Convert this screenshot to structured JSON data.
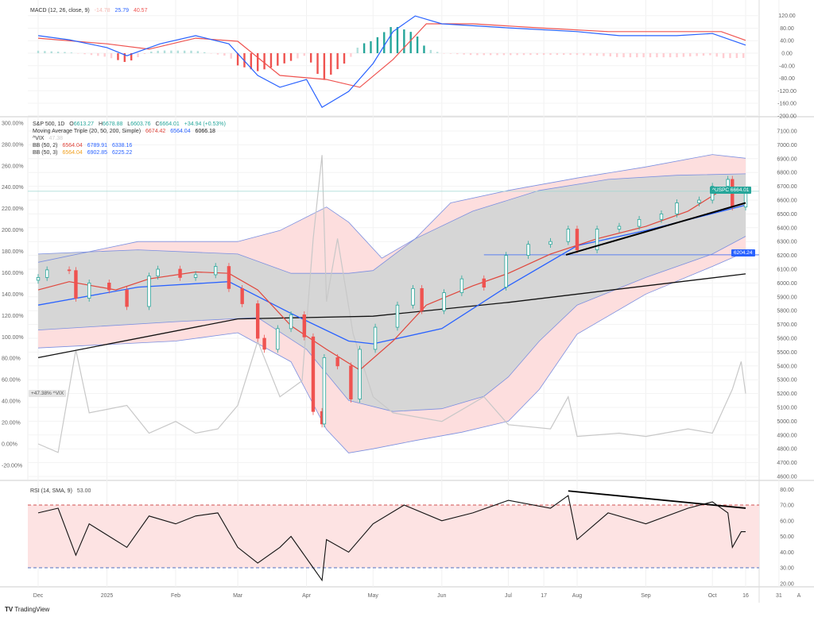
{
  "footer": {
    "brand": "TradingView",
    "logo": "TV"
  },
  "time_axis": [
    {
      "label": "Dec",
      "date": "2024-12-01"
    },
    {
      "label": "2025",
      "date": "2025-01-01"
    },
    {
      "label": "Feb",
      "date": "2025-02-01"
    },
    {
      "label": "Mar",
      "date": "2025-03-01"
    },
    {
      "label": "Apr",
      "date": "2025-04-01"
    },
    {
      "label": "May",
      "date": "2025-05-01"
    },
    {
      "label": "Jun",
      "date": "2025-06-01"
    },
    {
      "label": "Jul",
      "date": "2025-07-01"
    },
    {
      "label": "17",
      "date": "2025-07-17"
    },
    {
      "label": "Aug",
      "date": "2025-08-01"
    },
    {
      "label": "Sep",
      "date": "2025-09-01"
    },
    {
      "label": "Oct",
      "date": "2025-10-01"
    },
    {
      "label": "16",
      "date": "2025-10-16"
    },
    {
      "label": "31",
      "date": "2025-10-31"
    }
  ],
  "time_axis_auto": "A",
  "colors": {
    "up": "#26a69a",
    "down": "#ef5350",
    "ma20": "#e0463c",
    "ma50": "#2962ff",
    "ma200": "#111111",
    "bb2": "#d6d6d6",
    "bb3": "#fddede",
    "vix": "#c8c8c8",
    "macd": "#2962ff",
    "signal": "#ef5350"
  },
  "chart_data": [
    {
      "type": "line",
      "pane": "macd",
      "title": "MACD (12, 26, close, 9)",
      "legend_values": [
        "-14.78",
        "25.79",
        "40.57"
      ],
      "yticks": [
        "120.00",
        "80.00",
        "40.00",
        "0.00",
        "-40.00",
        "-80.00",
        "-120.00",
        "-160.00",
        "-200.00"
      ],
      "ylim": [
        -200,
        120
      ],
      "series": [
        {
          "name": "MACD",
          "points": [
            [
              "2024-12-01",
              56
            ],
            [
              "2024-12-15",
              43
            ],
            [
              "2025-01-01",
              18
            ],
            [
              "2025-01-10",
              -8
            ],
            [
              "2025-01-25",
              30
            ],
            [
              "2025-02-10",
              56
            ],
            [
              "2025-02-25",
              30
            ],
            [
              "2025-03-10",
              -71
            ],
            [
              "2025-03-20",
              -109
            ],
            [
              "2025-04-01",
              -84
            ],
            [
              "2025-04-08",
              -173
            ],
            [
              "2025-04-20",
              -122
            ],
            [
              "2025-05-01",
              -33
            ],
            [
              "2025-05-10",
              69
            ],
            [
              "2025-05-20",
              119
            ],
            [
              "2025-06-01",
              94
            ],
            [
              "2025-07-01",
              81
            ],
            [
              "2025-08-01",
              69
            ],
            [
              "2025-08-20",
              56
            ],
            [
              "2025-09-15",
              56
            ],
            [
              "2025-10-01",
              63
            ],
            [
              "2025-10-16",
              26
            ]
          ]
        },
        {
          "name": "Signal",
          "points": [
            [
              "2024-12-01",
              48
            ],
            [
              "2025-01-01",
              30
            ],
            [
              "2025-01-20",
              13
            ],
            [
              "2025-02-10",
              48
            ],
            [
              "2025-03-01",
              38
            ],
            [
              "2025-03-20",
              -71
            ],
            [
              "2025-04-10",
              -84
            ],
            [
              "2025-04-25",
              -109
            ],
            [
              "2025-05-10",
              -20
            ],
            [
              "2025-05-25",
              94
            ],
            [
              "2025-06-15",
              94
            ],
            [
              "2025-07-15",
              81
            ],
            [
              "2025-08-15",
              69
            ],
            [
              "2025-09-15",
              69
            ],
            [
              "2025-10-05",
              69
            ],
            [
              "2025-10-16",
              41
            ]
          ]
        }
      ]
    },
    {
      "type": "candlestick",
      "pane": "price",
      "title": "S&P 500, 1D",
      "ohlc": {
        "O": "6613.27",
        "H": "6678.88",
        "L": "6603.76",
        "C": "6664.01",
        "change": "+34.94 (+0.53%)"
      },
      "ma_title": "Moving Average Triple (20, 50, 200, Simple)",
      "ma_values": [
        "6674.42",
        "6564.04",
        "6066.18"
      ],
      "vix_title": "^VIX",
      "vix_value": "47.38",
      "bb2_title": "BB (50, 2)",
      "bb2_values": [
        "6564.04",
        "6789.91",
        "6338.16"
      ],
      "bb3_title": "BB (50, 3)",
      "bb3_values": [
        "6564.04",
        "6902.85",
        "6225.22"
      ],
      "price_yticks": [
        "7100.00",
        "7000.00",
        "6900.00",
        "6800.00",
        "6700.00",
        "6600.00",
        "6500.00",
        "6400.00",
        "6300.00",
        "6200.00",
        "6100.00",
        "6000.00",
        "5900.00",
        "5800.00",
        "5700.00",
        "5600.00",
        "5500.00",
        "5400.00",
        "5300.00",
        "5200.00",
        "5100.00",
        "5000.00",
        "4900.00",
        "4800.00",
        "4700.00",
        "4600.00"
      ],
      "pct_yticks": [
        "300.00%",
        "280.00%",
        "260.00%",
        "240.00%",
        "220.00%",
        "200.00%",
        "180.00%",
        "160.00%",
        "140.00%",
        "120.00%",
        "100.00%",
        "80.00%",
        "60.00%",
        "40.00%",
        "20.00%",
        "0.00%",
        "-20.00%"
      ],
      "ylim": [
        4600,
        7100
      ],
      "pct_ylim": [
        -20,
        300
      ],
      "last_price_tag": {
        "symbol": "^USPC",
        "value": "6664.01",
        "price": 6664.01
      },
      "horizontal_level": {
        "value": "6204.24",
        "price": 6204.24
      },
      "vix_tag": {
        "value": "+47.38%",
        "label": "^VIX"
      },
      "trendline": [
        [
          "2025-07-27",
          6204
        ],
        [
          "2025-10-16",
          6580
        ]
      ],
      "close": [
        [
          "2024-12-01",
          6040
        ],
        [
          "2024-12-05",
          6095
        ],
        [
          "2024-12-15",
          6090
        ],
        [
          "2024-12-18",
          5890
        ],
        [
          "2024-12-24",
          6000
        ],
        [
          "2025-01-02",
          5950
        ],
        [
          "2025-01-10",
          5830
        ],
        [
          "2025-01-20",
          6050
        ],
        [
          "2025-01-24",
          6100
        ],
        [
          "2025-02-03",
          6040
        ],
        [
          "2025-02-10",
          6060
        ],
        [
          "2025-02-19",
          6120
        ],
        [
          "2025-02-25",
          5960
        ],
        [
          "2025-03-03",
          5850
        ],
        [
          "2025-03-10",
          5600
        ],
        [
          "2025-03-13",
          5520
        ],
        [
          "2025-03-19",
          5670
        ],
        [
          "2025-03-25",
          5770
        ],
        [
          "2025-03-31",
          5610
        ],
        [
          "2025-04-04",
          5070
        ],
        [
          "2025-04-08",
          4980
        ],
        [
          "2025-04-09",
          5460
        ],
        [
          "2025-04-15",
          5400
        ],
        [
          "2025-04-21",
          5160
        ],
        [
          "2025-04-25",
          5520
        ],
        [
          "2025-05-02",
          5680
        ],
        [
          "2025-05-12",
          5840
        ],
        [
          "2025-05-19",
          5960
        ],
        [
          "2025-05-23",
          5800
        ],
        [
          "2025-06-02",
          5930
        ],
        [
          "2025-06-10",
          6030
        ],
        [
          "2025-06-20",
          5970
        ],
        [
          "2025-06-30",
          6200
        ],
        [
          "2025-07-10",
          6280
        ],
        [
          "2025-07-20",
          6300
        ],
        [
          "2025-07-28",
          6390
        ],
        [
          "2025-08-01",
          6240
        ],
        [
          "2025-08-10",
          6390
        ],
        [
          "2025-08-20",
          6410
        ],
        [
          "2025-08-29",
          6460
        ],
        [
          "2025-09-08",
          6500
        ],
        [
          "2025-09-15",
          6580
        ],
        [
          "2025-09-25",
          6600
        ],
        [
          "2025-10-01",
          6700
        ],
        [
          "2025-10-08",
          6750
        ],
        [
          "2025-10-10",
          6550
        ],
        [
          "2025-10-16",
          6664
        ]
      ],
      "ma20": [
        [
          "2024-12-01",
          5950
        ],
        [
          "2024-12-15",
          6010
        ],
        [
          "2025-01-05",
          5950
        ],
        [
          "2025-01-20",
          6030
        ],
        [
          "2025-02-10",
          6080
        ],
        [
          "2025-02-25",
          6070
        ],
        [
          "2025-03-10",
          5950
        ],
        [
          "2025-03-25",
          5690
        ],
        [
          "2025-04-10",
          5520
        ],
        [
          "2025-04-25",
          5370
        ],
        [
          "2025-05-10",
          5580
        ],
        [
          "2025-05-25",
          5840
        ],
        [
          "2025-06-15",
          5980
        ],
        [
          "2025-07-01",
          6070
        ],
        [
          "2025-07-20",
          6210
        ],
        [
          "2025-08-10",
          6320
        ],
        [
          "2025-09-01",
          6410
        ],
        [
          "2025-09-20",
          6520
        ],
        [
          "2025-10-05",
          6670
        ],
        [
          "2025-10-16",
          6674
        ]
      ],
      "ma50": [
        [
          "2024-12-01",
          5840
        ],
        [
          "2025-01-15",
          5970
        ],
        [
          "2025-02-25",
          6010
        ],
        [
          "2025-03-25",
          5780
        ],
        [
          "2025-04-20",
          5580
        ],
        [
          "2025-05-01",
          5560
        ],
        [
          "2025-06-01",
          5670
        ],
        [
          "2025-07-01",
          5980
        ],
        [
          "2025-08-01",
          6270
        ],
        [
          "2025-09-01",
          6380
        ],
        [
          "2025-10-16",
          6564
        ]
      ],
      "ma200": [
        [
          "2024-12-01",
          5460
        ],
        [
          "2025-03-01",
          5740
        ],
        [
          "2025-05-01",
          5760
        ],
        [
          "2025-07-01",
          5860
        ],
        [
          "2025-10-16",
          6066
        ]
      ],
      "bb2_upper": [
        [
          "2024-12-01",
          6210
        ],
        [
          "2025-01-15",
          6240
        ],
        [
          "2025-03-01",
          6210
        ],
        [
          "2025-03-25",
          6070
        ],
        [
          "2025-04-20",
          6070
        ],
        [
          "2025-05-01",
          6090
        ],
        [
          "2025-05-20",
          6320
        ],
        [
          "2025-06-15",
          6520
        ],
        [
          "2025-07-15",
          6670
        ],
        [
          "2025-08-15",
          6750
        ],
        [
          "2025-09-15",
          6780
        ],
        [
          "2025-10-16",
          6790
        ]
      ],
      "bb2_lower": [
        [
          "2024-12-01",
          5660
        ],
        [
          "2025-02-01",
          5720
        ],
        [
          "2025-03-10",
          5750
        ],
        [
          "2025-04-01",
          5520
        ],
        [
          "2025-04-20",
          5150
        ],
        [
          "2025-05-10",
          5070
        ],
        [
          "2025-06-01",
          5090
        ],
        [
          "2025-06-20",
          5180
        ],
        [
          "2025-07-01",
          5320
        ],
        [
          "2025-07-15",
          5580
        ],
        [
          "2025-08-01",
          5840
        ],
        [
          "2025-09-01",
          6040
        ],
        [
          "2025-10-01",
          6210
        ],
        [
          "2025-10-16",
          6338
        ]
      ],
      "bb3_upper": [
        [
          "2024-12-01",
          6150
        ],
        [
          "2025-01-15",
          6300
        ],
        [
          "2025-03-01",
          6300
        ],
        [
          "2025-03-20",
          6380
        ],
        [
          "2025-04-10",
          6550
        ],
        [
          "2025-04-20",
          6440
        ],
        [
          "2025-05-05",
          6180
        ],
        [
          "2025-05-20",
          6320
        ],
        [
          "2025-06-05",
          6580
        ],
        [
          "2025-07-01",
          6670
        ],
        [
          "2025-08-01",
          6760
        ],
        [
          "2025-09-01",
          6840
        ],
        [
          "2025-10-01",
          6930
        ],
        [
          "2025-10-16",
          6903
        ]
      ],
      "bb3_lower": [
        [
          "2024-12-01",
          5530
        ],
        [
          "2025-02-01",
          5580
        ],
        [
          "2025-03-01",
          5640
        ],
        [
          "2025-03-25",
          5430
        ],
        [
          "2025-04-10",
          4940
        ],
        [
          "2025-04-20",
          4770
        ],
        [
          "2025-05-01",
          4800
        ],
        [
          "2025-05-20",
          4860
        ],
        [
          "2025-06-10",
          4920
        ],
        [
          "2025-07-01",
          5000
        ],
        [
          "2025-07-15",
          5230
        ],
        [
          "2025-08-01",
          5630
        ],
        [
          "2025-09-01",
          5920
        ],
        [
          "2025-10-01",
          6120
        ],
        [
          "2025-10-16",
          6225
        ]
      ],
      "vix_pct": [
        [
          "2024-12-01",
          0
        ],
        [
          "2024-12-10",
          -8
        ],
        [
          "2024-12-18",
          88
        ],
        [
          "2024-12-24",
          29
        ],
        [
          "2025-01-10",
          36
        ],
        [
          "2025-01-20",
          10
        ],
        [
          "2025-02-01",
          21
        ],
        [
          "2025-02-10",
          10
        ],
        [
          "2025-02-20",
          14
        ],
        [
          "2025-03-01",
          36
        ],
        [
          "2025-03-10",
          96
        ],
        [
          "2025-03-20",
          44
        ],
        [
          "2025-03-30",
          59
        ],
        [
          "2025-04-04",
          192
        ],
        [
          "2025-04-08",
          270
        ],
        [
          "2025-04-10",
          133
        ],
        [
          "2025-04-15",
          192
        ],
        [
          "2025-04-22",
          103
        ],
        [
          "2025-05-01",
          44
        ],
        [
          "2025-05-10",
          29
        ],
        [
          "2025-06-01",
          21
        ],
        [
          "2025-06-20",
          44
        ],
        [
          "2025-07-01",
          18
        ],
        [
          "2025-07-20",
          14
        ],
        [
          "2025-07-28",
          44
        ],
        [
          "2025-08-01",
          7
        ],
        [
          "2025-08-20",
          10
        ],
        [
          "2025-09-01",
          7
        ],
        [
          "2025-09-20",
          14
        ],
        [
          "2025-10-01",
          10
        ],
        [
          "2025-10-10",
          51
        ],
        [
          "2025-10-14",
          77
        ],
        [
          "2025-10-16",
          47
        ]
      ]
    },
    {
      "type": "line",
      "pane": "rsi",
      "title": "RSI (14, SMA, 9)",
      "legend_value": "53.00",
      "yticks": [
        "80.00",
        "70.00",
        "60.00",
        "50.00",
        "40.00",
        "30.00",
        "20.00"
      ],
      "ylim": [
        20,
        80
      ],
      "bands": [
        30,
        70
      ],
      "trendline": [
        [
          "2025-07-28",
          79
        ],
        [
          "2025-10-16",
          68
        ]
      ],
      "points": [
        [
          "2024-12-01",
          65
        ],
        [
          "2024-12-10",
          68
        ],
        [
          "2024-12-18",
          38
        ],
        [
          "2024-12-24",
          58
        ],
        [
          "2025-01-10",
          43
        ],
        [
          "2025-01-20",
          63
        ],
        [
          "2025-02-01",
          58
        ],
        [
          "2025-02-10",
          63
        ],
        [
          "2025-02-20",
          65
        ],
        [
          "2025-03-01",
          43
        ],
        [
          "2025-03-10",
          33
        ],
        [
          "2025-03-20",
          43
        ],
        [
          "2025-03-25",
          50
        ],
        [
          "2025-04-04",
          30
        ],
        [
          "2025-04-08",
          22
        ],
        [
          "2025-04-10",
          48
        ],
        [
          "2025-04-20",
          40
        ],
        [
          "2025-05-01",
          58
        ],
        [
          "2025-05-15",
          70
        ],
        [
          "2025-06-01",
          60
        ],
        [
          "2025-06-15",
          65
        ],
        [
          "2025-07-01",
          73
        ],
        [
          "2025-07-20",
          68
        ],
        [
          "2025-07-28",
          76
        ],
        [
          "2025-08-01",
          48
        ],
        [
          "2025-08-15",
          65
        ],
        [
          "2025-09-01",
          58
        ],
        [
          "2025-09-20",
          68
        ],
        [
          "2025-10-01",
          72
        ],
        [
          "2025-10-08",
          65
        ],
        [
          "2025-10-10",
          43
        ],
        [
          "2025-10-14",
          53
        ],
        [
          "2025-10-16",
          53
        ]
      ]
    }
  ]
}
